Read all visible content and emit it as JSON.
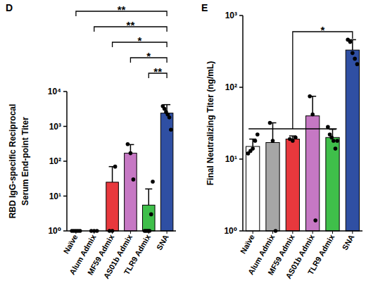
{
  "chart_data": [
    {
      "type": "bar",
      "panel_label": "D",
      "y_label": [
        "RBD IgG-specific Reciprocal",
        "Serum End-point Titer"
      ],
      "categories": [
        "Naïve",
        "Alum Admix",
        "MF59 Admix",
        "AS01b Admix",
        "TLR9 Admix",
        "SNA"
      ],
      "values": [
        1,
        1,
        25,
        170,
        5.5,
        2400
      ],
      "errors": [
        0,
        0,
        45,
        130,
        10.5,
        1800
      ],
      "points": [
        [
          1,
          1,
          1,
          1,
          1
        ],
        [
          1,
          1,
          1
        ],
        [
          1,
          1,
          70
        ],
        [
          310,
          170,
          30
        ],
        [
          1,
          1,
          1,
          1,
          3,
          26
        ],
        [
          3800,
          3200,
          2600,
          2200,
          1800,
          800
        ]
      ],
      "colors": [
        "#ffffff",
        "#a6a6a6",
        "#e8383d",
        "#c678c4",
        "#3fbf4a",
        "#2f4fa3"
      ],
      "log": "y",
      "ylim": [
        1,
        10000
      ],
      "yticks": [
        {
          "value": 1,
          "label": "10⁰"
        },
        {
          "value": 10,
          "label": "10¹"
        },
        {
          "value": 100,
          "label": "10²"
        },
        {
          "value": 1000,
          "label": "10³"
        },
        {
          "value": 10000,
          "label": "10⁴"
        }
      ],
      "annotations": [
        {
          "from": 0,
          "to": 5,
          "label": "**"
        },
        {
          "from": 1,
          "to": 5,
          "label": "**"
        },
        {
          "from": 2,
          "to": 5,
          "label": "*"
        },
        {
          "from": 3,
          "to": 5,
          "label": "*"
        },
        {
          "from": 4,
          "to": 5,
          "label": "**"
        }
      ]
    },
    {
      "type": "bar",
      "panel_label": "E",
      "y_label": [
        "Final Neutralizing Titer (ng/mL)"
      ],
      "categories": [
        "Naïve",
        "Alum Admix",
        "MF59 Admix",
        "AS01b Admix",
        "TLR9 Admix",
        "SNA"
      ],
      "values": [
        15,
        17,
        19,
        40,
        20,
        330
      ],
      "errors": [
        4,
        15,
        2,
        35,
        6,
        130
      ],
      "points": [
        [
          12,
          13,
          14,
          18,
          22
        ],
        [
          32,
          18,
          1
        ],
        [
          19,
          18,
          20
        ],
        [
          75,
          42,
          1.4
        ],
        [
          28,
          22,
          20,
          18,
          14,
          18
        ],
        [
          460,
          430,
          300,
          250,
          210
        ]
      ],
      "colors": [
        "#ffffff",
        "#a6a6a6",
        "#e8383d",
        "#c678c4",
        "#3fbf4a",
        "#2f4fa3"
      ],
      "log": "y",
      "ylim": [
        1,
        1000
      ],
      "yticks": [
        {
          "value": 1,
          "label": "10⁰"
        },
        {
          "value": 10,
          "label": "10¹"
        },
        {
          "value": 100,
          "label": "10²"
        },
        {
          "value": 1000,
          "label": "10³"
        }
      ],
      "annotations": [
        {
          "from": 0,
          "through": 4,
          "to": 5,
          "label": "*"
        }
      ]
    }
  ]
}
